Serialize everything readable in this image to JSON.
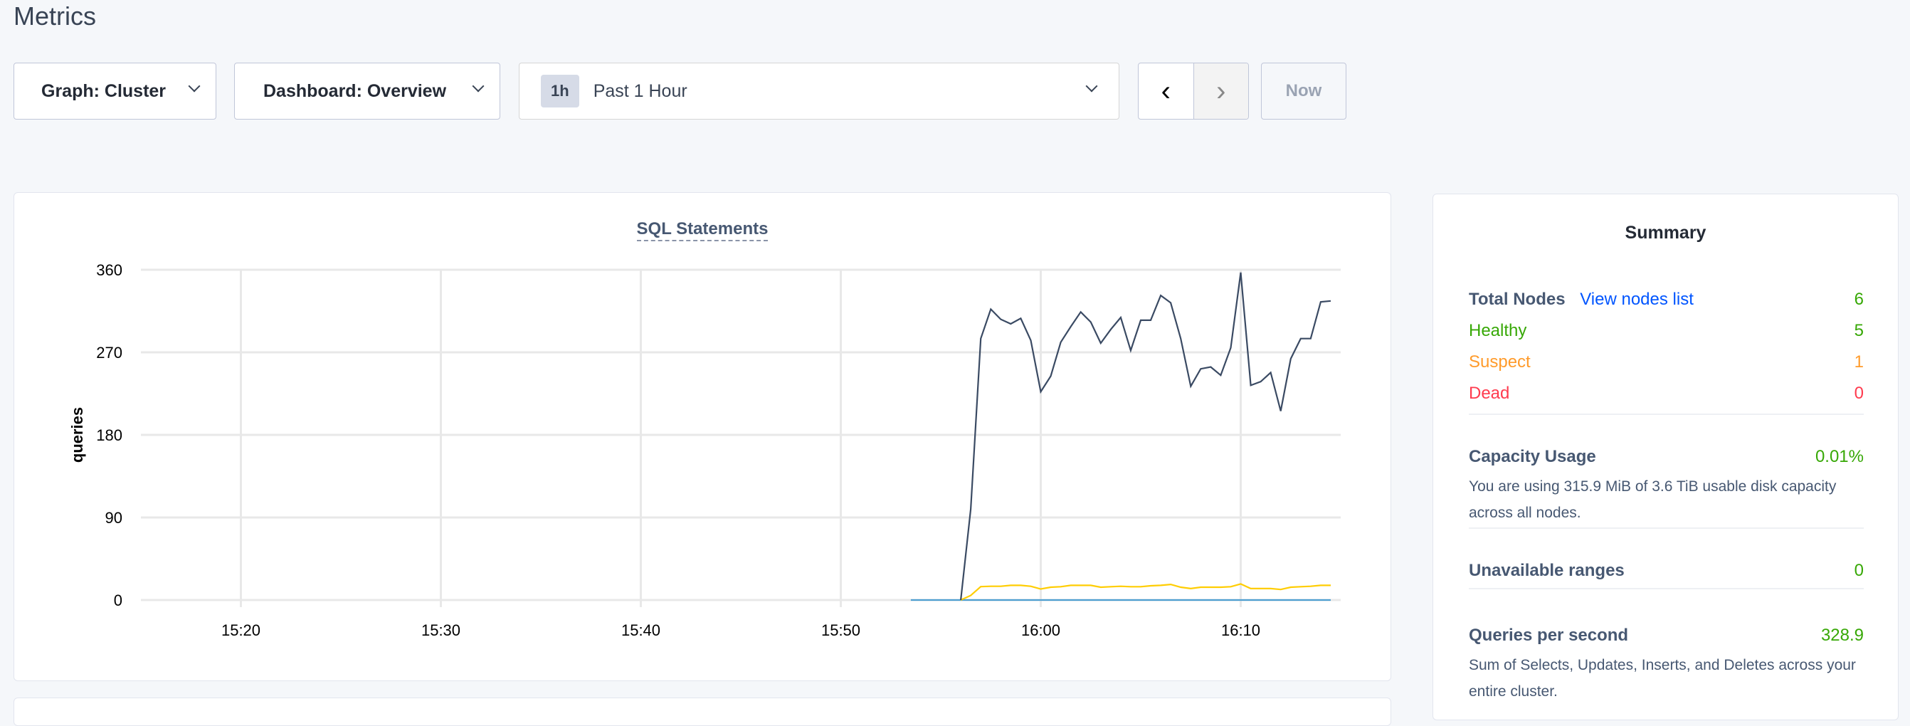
{
  "page": {
    "title": "Metrics"
  },
  "toolbar": {
    "graph_label": "Graph: Cluster",
    "dashboard_label": "Dashboard: Overview",
    "time_badge": "1h",
    "time_label": "Past 1 Hour",
    "prev": "‹",
    "next": "›",
    "now_label": "Now"
  },
  "chart_data": {
    "type": "line",
    "title": "SQL Statements",
    "ylabel": "queries",
    "xlabel": "",
    "ylim": [
      0,
      360
    ],
    "xlim": [
      "15:15",
      "16:15"
    ],
    "yticks": [
      0,
      90,
      180,
      270,
      360
    ],
    "xticks": [
      "15:20",
      "15:30",
      "15:40",
      "15:50",
      "16:00",
      "16:10"
    ],
    "grid": true,
    "series": [
      {
        "color": "#3a4a63",
        "start": "15:56:00",
        "interval_s": 30,
        "values": [
          0,
          99,
          285,
          317,
          306,
          301,
          307,
          283,
          227,
          244,
          281,
          298,
          314,
          303,
          280,
          295,
          308,
          272,
          305,
          305,
          332,
          324,
          285,
          233,
          252,
          254,
          245,
          275,
          357,
          234,
          238,
          248,
          206,
          263,
          285,
          285,
          325,
          326
        ]
      },
      {
        "color": "#ffcd02",
        "start": "15:56:00",
        "interval_s": 30,
        "values": [
          0,
          5,
          14.6,
          15,
          15,
          16,
          16,
          15,
          12,
          14,
          14.5,
          16,
          16,
          16,
          14,
          14.5,
          15,
          14.5,
          14.5,
          15.5,
          16,
          17,
          14,
          12.5,
          14,
          14,
          14,
          14.5,
          17.5,
          12.5,
          12.5,
          12.5,
          11.5,
          14,
          14.5,
          15,
          16,
          16
        ]
      },
      {
        "color": "#4e9fd1",
        "start": "15:53:30",
        "interval_s": 30,
        "values": [
          0,
          0,
          0,
          0,
          0,
          0,
          0,
          0,
          0,
          0,
          0,
          0,
          0,
          0,
          0,
          0,
          0,
          0,
          0,
          0,
          0,
          0,
          0,
          0,
          0,
          0,
          0,
          0,
          0,
          0,
          0,
          0,
          0,
          0,
          0,
          0,
          0,
          0,
          0,
          0,
          0,
          0,
          0
        ]
      }
    ]
  },
  "summary": {
    "title": "Summary",
    "total_nodes_label": "Total Nodes",
    "view_nodes_link": "View nodes list",
    "total_nodes": "6",
    "healthy_label": "Healthy",
    "healthy": "5",
    "suspect_label": "Suspect",
    "suspect": "1",
    "dead_label": "Dead",
    "dead": "0",
    "capacity_label": "Capacity Usage",
    "capacity": "0.01%",
    "capacity_desc": "You are using 315.9 MiB of 3.6 TiB usable disk capacity across all nodes.",
    "unavailable_label": "Unavailable ranges",
    "unavailable": "0",
    "qps_label": "Queries per second",
    "qps": "328.9",
    "qps_desc": "Sum of Selects, Updates, Inserts, and Deletes across your entire cluster."
  },
  "colors": {
    "healthy": "#37a806",
    "suspect": "#ff9b2b",
    "dead": "#ff3b4e",
    "link": "#0055ff"
  }
}
